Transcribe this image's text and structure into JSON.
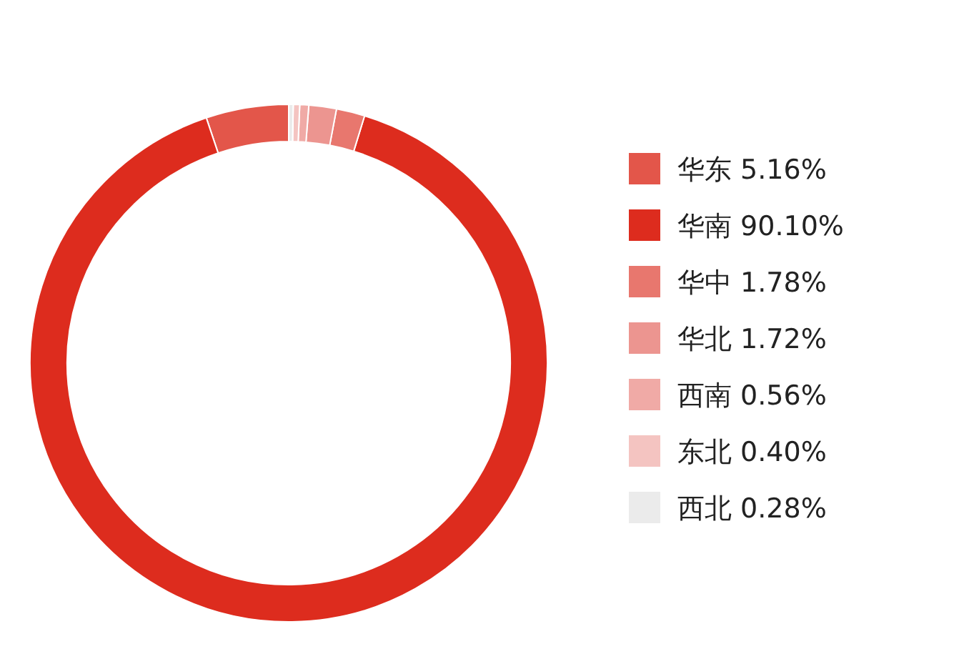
{
  "chart_data": {
    "type": "donut",
    "categories": [
      "华东",
      "华南",
      "华中",
      "华北",
      "西南",
      "东北",
      "西北"
    ],
    "values": [
      5.16,
      90.1,
      1.78,
      1.72,
      0.56,
      0.4,
      0.28
    ],
    "value_labels": [
      "5.16%",
      "90.10%",
      "1.78%",
      "1.72%",
      "0.56%",
      "0.40%",
      "0.28%"
    ],
    "colors": [
      "#e3564a",
      "#dd2c1e",
      "#e8776e",
      "#ec9590",
      "#f0aaa6",
      "#f4c4c1",
      "#ebebeb"
    ],
    "legend": "right"
  }
}
